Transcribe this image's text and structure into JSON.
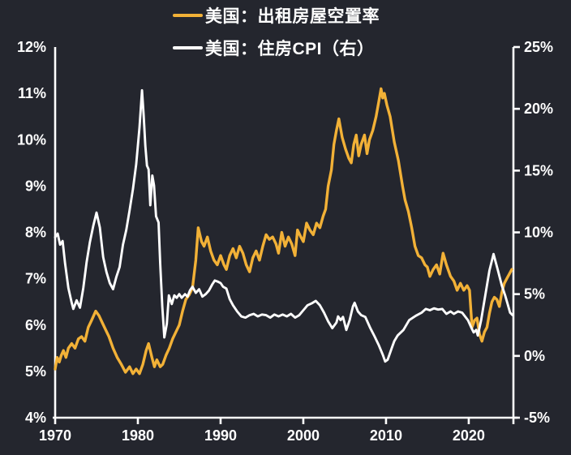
{
  "page": {
    "background": "#24262E",
    "text_color": "#FFFFFF"
  },
  "legend": {
    "items": [
      {
        "label": "美国：出租房屋空置率",
        "color": "#F2B137"
      },
      {
        "label": "美国：住房CPI（右）",
        "color": "#FFFFFF"
      }
    ]
  },
  "chart_data": {
    "type": "line",
    "title": "",
    "grid": false,
    "legend_position": "top-center",
    "x_axis": {
      "range": [
        1970,
        2025.4
      ],
      "tick_values": [
        1970,
        1980,
        1990,
        2000,
        2010,
        2020
      ],
      "tick_labels": [
        "1970",
        "1980",
        "1990",
        "2000",
        "2010",
        "2020"
      ]
    },
    "left_axis": {
      "range": [
        4,
        12
      ],
      "tick_values": [
        12,
        11,
        10,
        9,
        8,
        7,
        6,
        5,
        4
      ],
      "tick_labels": [
        "12%",
        "11%",
        "10%",
        "9%",
        "8%",
        "7%",
        "6%",
        "5%",
        "4%"
      ]
    },
    "right_axis": {
      "range": [
        -5,
        25
      ],
      "tick_values": [
        25,
        20,
        15,
        10,
        5,
        0,
        -5
      ],
      "tick_labels": [
        "25%",
        "20%",
        "15%",
        "10%",
        "5%",
        "0%",
        "-5%"
      ]
    },
    "series": [
      {
        "name": "美国：出租房屋空置率",
        "axis": "left",
        "color": "#F2B137",
        "width": 3.4,
        "points": [
          [
            1970.0,
            5.05
          ],
          [
            1970.25,
            5.3
          ],
          [
            1970.5,
            5.2
          ],
          [
            1970.75,
            5.35
          ],
          [
            1971.0,
            5.45
          ],
          [
            1971.3,
            5.3
          ],
          [
            1971.6,
            5.5
          ],
          [
            1972.0,
            5.6
          ],
          [
            1972.4,
            5.5
          ],
          [
            1972.8,
            5.7
          ],
          [
            1973.2,
            5.75
          ],
          [
            1973.6,
            5.65
          ],
          [
            1974.0,
            5.95
          ],
          [
            1974.4,
            6.1
          ],
          [
            1974.9,
            6.3
          ],
          [
            1975.3,
            6.2
          ],
          [
            1975.7,
            6.05
          ],
          [
            1976.1,
            5.9
          ],
          [
            1976.5,
            5.75
          ],
          [
            1977.0,
            5.5
          ],
          [
            1977.5,
            5.3
          ],
          [
            1978.0,
            5.15
          ],
          [
            1978.5,
            4.98
          ],
          [
            1979.0,
            5.1
          ],
          [
            1979.4,
            4.95
          ],
          [
            1979.8,
            5.05
          ],
          [
            1980.2,
            4.95
          ],
          [
            1980.6,
            5.15
          ],
          [
            1981.0,
            5.45
          ],
          [
            1981.3,
            5.6
          ],
          [
            1981.7,
            5.3
          ],
          [
            1982.0,
            5.1
          ],
          [
            1982.3,
            5.25
          ],
          [
            1982.7,
            5.1
          ],
          [
            1983.0,
            5.15
          ],
          [
            1983.4,
            5.35
          ],
          [
            1983.8,
            5.5
          ],
          [
            1984.2,
            5.7
          ],
          [
            1984.6,
            5.85
          ],
          [
            1985.0,
            6.0
          ],
          [
            1985.4,
            6.3
          ],
          [
            1985.8,
            6.55
          ],
          [
            1986.2,
            6.65
          ],
          [
            1986.6,
            6.8
          ],
          [
            1987.0,
            7.4
          ],
          [
            1987.3,
            8.1
          ],
          [
            1987.7,
            7.8
          ],
          [
            1988.0,
            7.7
          ],
          [
            1988.4,
            7.9
          ],
          [
            1988.8,
            7.6
          ],
          [
            1989.2,
            7.4
          ],
          [
            1989.6,
            7.3
          ],
          [
            1990.0,
            7.5
          ],
          [
            1990.4,
            7.3
          ],
          [
            1990.7,
            7.2
          ],
          [
            1991.1,
            7.5
          ],
          [
            1991.5,
            7.65
          ],
          [
            1991.9,
            7.45
          ],
          [
            1992.3,
            7.7
          ],
          [
            1992.7,
            7.55
          ],
          [
            1993.1,
            7.3
          ],
          [
            1993.5,
            7.15
          ],
          [
            1993.9,
            7.45
          ],
          [
            1994.3,
            7.6
          ],
          [
            1994.7,
            7.4
          ],
          [
            1995.1,
            7.7
          ],
          [
            1995.5,
            7.95
          ],
          [
            1995.9,
            7.85
          ],
          [
            1996.3,
            7.9
          ],
          [
            1996.7,
            7.75
          ],
          [
            1997.0,
            7.55
          ],
          [
            1997.4,
            8.0
          ],
          [
            1997.8,
            7.7
          ],
          [
            1998.2,
            7.9
          ],
          [
            1998.6,
            7.75
          ],
          [
            1999.0,
            7.5
          ],
          [
            1999.3,
            8.05
          ],
          [
            1999.7,
            7.9
          ],
          [
            2000.0,
            7.8
          ],
          [
            2000.4,
            8.2
          ],
          [
            2000.8,
            8.05
          ],
          [
            2001.2,
            7.95
          ],
          [
            2001.6,
            8.2
          ],
          [
            2002.0,
            8.1
          ],
          [
            2002.4,
            8.35
          ],
          [
            2002.7,
            8.5
          ],
          [
            2003.0,
            9.0
          ],
          [
            2003.4,
            9.35
          ],
          [
            2003.7,
            9.9
          ],
          [
            2004.0,
            10.2
          ],
          [
            2004.3,
            10.45
          ],
          [
            2004.7,
            10.05
          ],
          [
            2005.1,
            9.8
          ],
          [
            2005.5,
            9.6
          ],
          [
            2005.8,
            9.5
          ],
          [
            2006.1,
            9.9
          ],
          [
            2006.4,
            10.1
          ],
          [
            2006.7,
            9.65
          ],
          [
            2007.0,
            9.9
          ],
          [
            2007.4,
            10.1
          ],
          [
            2007.7,
            9.7
          ],
          [
            2008.0,
            10.0
          ],
          [
            2008.4,
            10.2
          ],
          [
            2008.8,
            10.5
          ],
          [
            2009.1,
            10.8
          ],
          [
            2009.4,
            11.1
          ],
          [
            2009.6,
            10.9
          ],
          [
            2009.8,
            11.0
          ],
          [
            2010.1,
            10.75
          ],
          [
            2010.5,
            10.5
          ],
          [
            2011.0,
            9.95
          ],
          [
            2011.5,
            9.55
          ],
          [
            2012.0,
            9.0
          ],
          [
            2012.3,
            8.7
          ],
          [
            2012.7,
            8.45
          ],
          [
            2013.1,
            8.1
          ],
          [
            2013.5,
            7.7
          ],
          [
            2013.9,
            7.5
          ],
          [
            2014.3,
            7.45
          ],
          [
            2014.7,
            7.3
          ],
          [
            2015.0,
            7.25
          ],
          [
            2015.3,
            7.05
          ],
          [
            2015.7,
            7.2
          ],
          [
            2016.1,
            7.3
          ],
          [
            2016.5,
            7.1
          ],
          [
            2016.9,
            7.55
          ],
          [
            2017.3,
            7.3
          ],
          [
            2017.8,
            7.05
          ],
          [
            2018.2,
            6.95
          ],
          [
            2018.6,
            6.75
          ],
          [
            2019.0,
            6.9
          ],
          [
            2019.4,
            6.75
          ],
          [
            2019.8,
            6.85
          ],
          [
            2020.1,
            6.75
          ],
          [
            2020.4,
            5.95
          ],
          [
            2020.7,
            6.1
          ],
          [
            2021.0,
            6.15
          ],
          [
            2021.3,
            5.8
          ],
          [
            2021.6,
            5.65
          ],
          [
            2021.9,
            5.85
          ],
          [
            2022.2,
            5.95
          ],
          [
            2022.5,
            6.25
          ],
          [
            2022.8,
            6.5
          ],
          [
            2023.1,
            6.6
          ],
          [
            2023.4,
            6.55
          ],
          [
            2023.7,
            6.4
          ],
          [
            2024.0,
            6.7
          ],
          [
            2024.3,
            6.9
          ],
          [
            2024.6,
            7.0
          ],
          [
            2024.9,
            7.1
          ],
          [
            2025.2,
            7.2
          ]
        ]
      },
      {
        "name": "美国：住房CPI（右）",
        "axis": "right",
        "color": "#FFFFFF",
        "width": 2.9,
        "points": [
          [
            1970.0,
            9.6
          ],
          [
            1970.3,
            9.9
          ],
          [
            1970.6,
            9.0
          ],
          [
            1970.9,
            9.3
          ],
          [
            1971.2,
            7.5
          ],
          [
            1971.6,
            5.5
          ],
          [
            1972.0,
            4.3
          ],
          [
            1972.2,
            3.8
          ],
          [
            1972.6,
            4.5
          ],
          [
            1973.0,
            3.9
          ],
          [
            1973.4,
            5.5
          ],
          [
            1973.8,
            7.6
          ],
          [
            1974.2,
            9.2
          ],
          [
            1974.6,
            10.5
          ],
          [
            1975.0,
            11.6
          ],
          [
            1975.4,
            10.4
          ],
          [
            1975.8,
            8.0
          ],
          [
            1976.2,
            6.8
          ],
          [
            1976.6,
            5.9
          ],
          [
            1977.0,
            5.4
          ],
          [
            1977.4,
            6.4
          ],
          [
            1977.8,
            7.2
          ],
          [
            1978.2,
            9.0
          ],
          [
            1978.6,
            10.2
          ],
          [
            1979.0,
            11.8
          ],
          [
            1979.4,
            13.5
          ],
          [
            1979.8,
            15.5
          ],
          [
            1980.2,
            18.5
          ],
          [
            1980.5,
            21.5
          ],
          [
            1980.7,
            19.5
          ],
          [
            1980.9,
            17.0
          ],
          [
            1981.1,
            15.4
          ],
          [
            1981.3,
            15.1
          ],
          [
            1981.5,
            12.2
          ],
          [
            1981.75,
            14.6
          ],
          [
            1981.95,
            13.8
          ],
          [
            1982.2,
            11.3
          ],
          [
            1982.5,
            10.8
          ],
          [
            1982.7,
            7.5
          ],
          [
            1982.95,
            4.0
          ],
          [
            1983.2,
            1.5
          ],
          [
            1983.5,
            2.6
          ],
          [
            1983.75,
            4.9
          ],
          [
            1984.1,
            4.2
          ],
          [
            1984.4,
            4.9
          ],
          [
            1984.7,
            4.7
          ],
          [
            1985.0,
            5.0
          ],
          [
            1985.3,
            4.7
          ],
          [
            1985.7,
            5.0
          ],
          [
            1986.0,
            4.8
          ],
          [
            1986.3,
            5.3
          ],
          [
            1986.6,
            5.6
          ],
          [
            1987.0,
            5.1
          ],
          [
            1987.4,
            5.4
          ],
          [
            1987.8,
            4.8
          ],
          [
            1988.2,
            5.0
          ],
          [
            1988.6,
            5.3
          ],
          [
            1989.0,
            5.8
          ],
          [
            1989.3,
            6.1
          ],
          [
            1989.7,
            6.0
          ],
          [
            1990.0,
            5.9
          ],
          [
            1990.3,
            5.6
          ],
          [
            1990.7,
            5.45
          ],
          [
            1991.1,
            4.6
          ],
          [
            1991.5,
            4.1
          ],
          [
            1992.0,
            3.6
          ],
          [
            1992.5,
            3.2
          ],
          [
            1993.0,
            3.1
          ],
          [
            1993.5,
            3.3
          ],
          [
            1994.0,
            3.4
          ],
          [
            1994.5,
            3.2
          ],
          [
            1995.0,
            3.35
          ],
          [
            1995.5,
            3.3
          ],
          [
            1996.0,
            3.1
          ],
          [
            1996.5,
            3.35
          ],
          [
            1997.0,
            3.2
          ],
          [
            1997.5,
            3.35
          ],
          [
            1998.0,
            3.2
          ],
          [
            1998.5,
            3.4
          ],
          [
            1999.0,
            3.1
          ],
          [
            1999.5,
            3.3
          ],
          [
            2000.0,
            3.7
          ],
          [
            2000.5,
            4.1
          ],
          [
            2001.0,
            4.25
          ],
          [
            2001.5,
            4.45
          ],
          [
            2002.0,
            4.1
          ],
          [
            2002.5,
            3.5
          ],
          [
            2003.0,
            2.8
          ],
          [
            2003.5,
            2.25
          ],
          [
            2004.0,
            2.7
          ],
          [
            2004.2,
            3.2
          ],
          [
            2004.5,
            2.9
          ],
          [
            2004.8,
            3.15
          ],
          [
            2005.2,
            2.1
          ],
          [
            2005.6,
            2.9
          ],
          [
            2006.0,
            4.0
          ],
          [
            2006.2,
            4.3
          ],
          [
            2006.6,
            3.6
          ],
          [
            2007.0,
            3.3
          ],
          [
            2007.5,
            3.15
          ],
          [
            2008.1,
            2.25
          ],
          [
            2008.6,
            1.6
          ],
          [
            2009.1,
            0.9
          ],
          [
            2009.6,
            0.1
          ],
          [
            2009.9,
            -0.45
          ],
          [
            2010.2,
            -0.3
          ],
          [
            2010.7,
            0.65
          ],
          [
            2011.0,
            1.2
          ],
          [
            2011.4,
            1.65
          ],
          [
            2012.1,
            2.1
          ],
          [
            2012.8,
            2.9
          ],
          [
            2013.6,
            3.25
          ],
          [
            2014.3,
            3.5
          ],
          [
            2014.8,
            3.8
          ],
          [
            2015.3,
            3.7
          ],
          [
            2015.8,
            3.85
          ],
          [
            2016.3,
            3.75
          ],
          [
            2016.8,
            3.8
          ],
          [
            2017.3,
            3.4
          ],
          [
            2017.8,
            3.6
          ],
          [
            2018.2,
            3.4
          ],
          [
            2018.7,
            3.6
          ],
          [
            2019.2,
            3.5
          ],
          [
            2019.9,
            2.9
          ],
          [
            2020.3,
            2.3
          ],
          [
            2020.6,
            1.9
          ],
          [
            2020.9,
            2.1
          ],
          [
            2021.1,
            1.65
          ],
          [
            2021.5,
            2.9
          ],
          [
            2022.0,
            4.9
          ],
          [
            2022.5,
            6.9
          ],
          [
            2023.0,
            8.25
          ],
          [
            2023.5,
            7.0
          ],
          [
            2024.0,
            5.7
          ],
          [
            2024.4,
            4.9
          ],
          [
            2024.7,
            4.2
          ],
          [
            2025.0,
            3.5
          ],
          [
            2025.3,
            3.3
          ]
        ]
      }
    ]
  }
}
